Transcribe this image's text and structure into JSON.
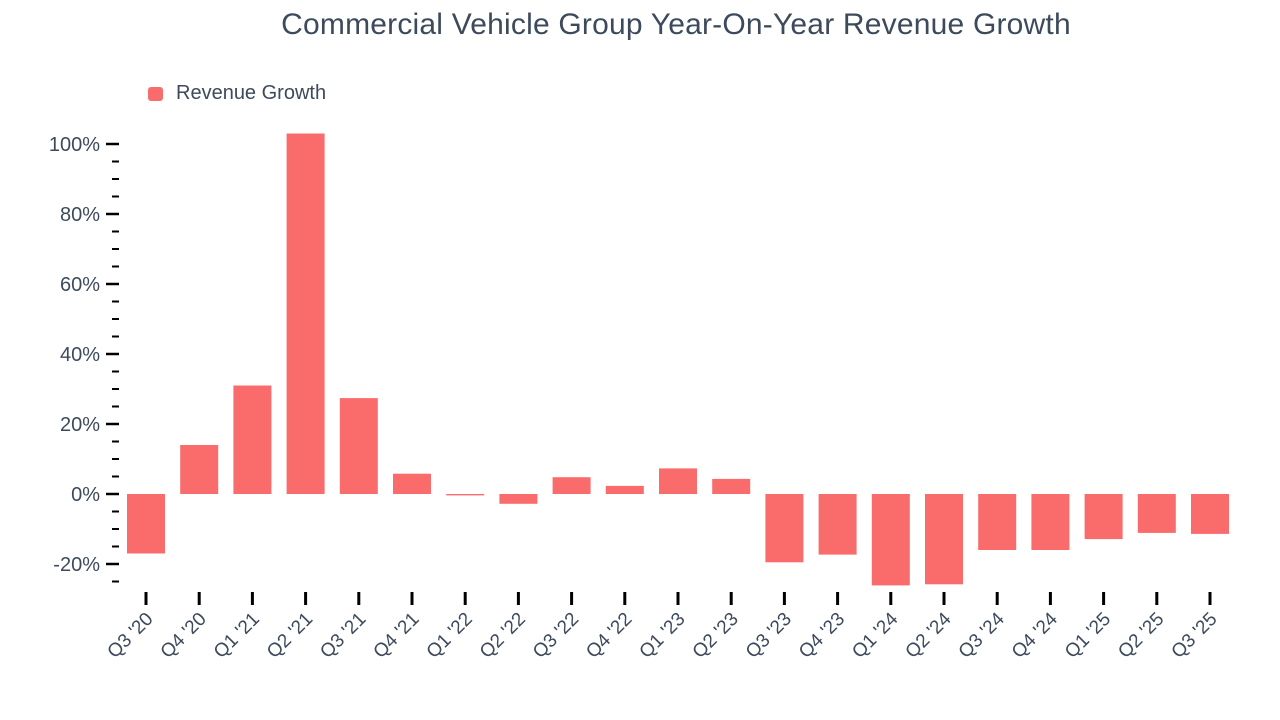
{
  "page": {
    "background": "#ffffff"
  },
  "chart_data": {
    "type": "bar",
    "title": "Commercial Vehicle Group Year-On-Year Revenue Growth",
    "legend": {
      "label": "Revenue Growth",
      "position": "top-left"
    },
    "categories": [
      "Q3 '20",
      "Q4 '20",
      "Q1 '21",
      "Q2 '21",
      "Q3 '21",
      "Q4 '21",
      "Q1 '22",
      "Q2 '22",
      "Q3 '22",
      "Q4 '22",
      "Q1 '23",
      "Q2 '23",
      "Q3 '23",
      "Q4 '23",
      "Q1 '24",
      "Q2 '24",
      "Q3 '24",
      "Q4 '24",
      "Q1 '25",
      "Q2 '25",
      "Q3 '25"
    ],
    "series": [
      {
        "name": "Revenue Growth",
        "values": [
          -17,
          14,
          31,
          103,
          27.4,
          5.8,
          -0.4,
          -2.8,
          4.8,
          2.3,
          7.3,
          4.3,
          -19.5,
          -17.3,
          -26.1,
          -25.8,
          -16,
          -16,
          -12.9,
          -11.1,
          -11.4
        ]
      }
    ],
    "xlabel": "",
    "ylabel": "",
    "y_axis": {
      "unit": "%",
      "min": -25,
      "max": 103,
      "major_ticks": [
        100,
        80,
        60,
        40,
        20,
        0,
        -20
      ],
      "major_tick_labels": [
        "100%",
        "80%",
        "60%",
        "40%",
        "20%",
        "0%",
        "-20%"
      ],
      "minor_tick_step": 5
    },
    "grid": false,
    "colors": {
      "bar": "#fa6c6c",
      "text": "#3d4a5c",
      "tick": "#000000"
    }
  }
}
